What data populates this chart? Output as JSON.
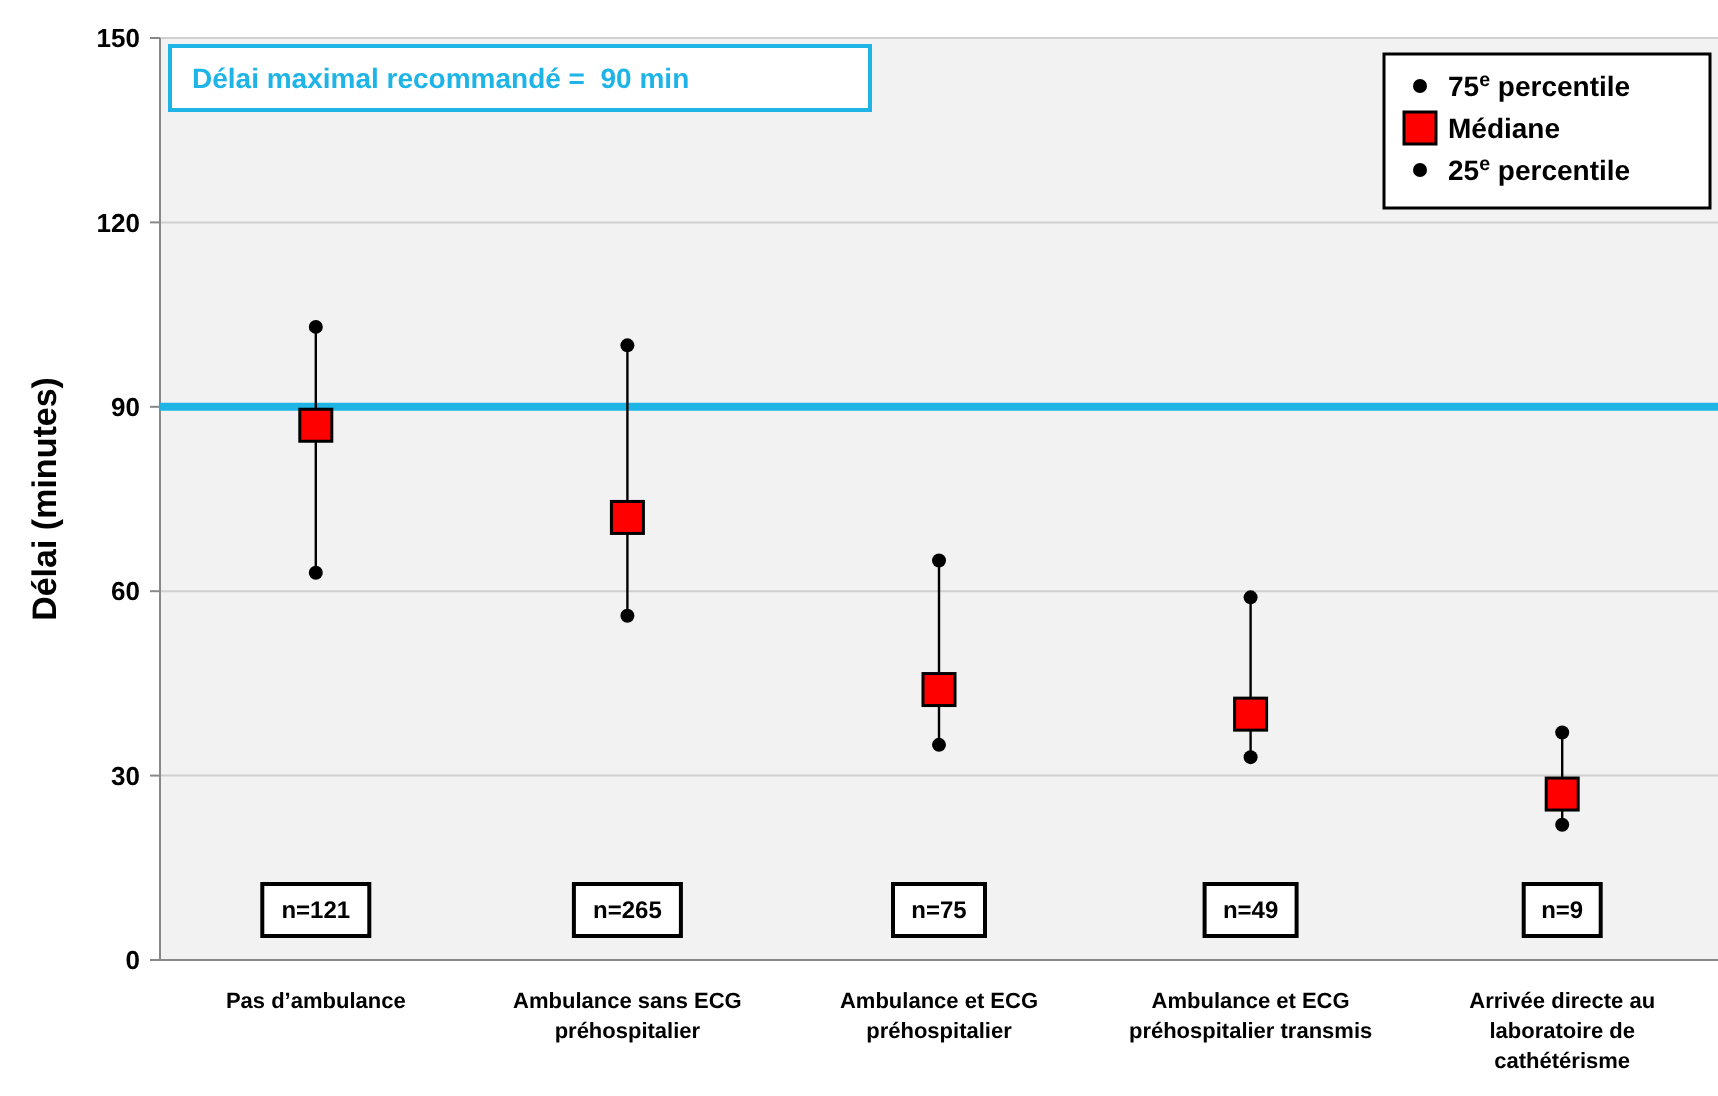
{
  "chart_data": {
    "type": "scatter",
    "ylabel": "Délai (minutes)",
    "categories": [
      "Pas d’ambulance",
      "Ambulance sans ECG préhospitalier",
      "Ambulance et ECG préhospitalier",
      "Ambulance et ECG préhospitalier transmis",
      "Arrivée directe au laboratoire de cathétérisme"
    ],
    "series": [
      {
        "name": "75$^{e}$ percentile",
        "color": "#000000",
        "marker": "circle",
        "values": [
          103,
          100,
          65,
          59,
          37
        ]
      },
      {
        "name": "Médiane",
        "color": "#ff0000",
        "marker": "square",
        "values": [
          87,
          72,
          44,
          40,
          27
        ]
      },
      {
        "name": "25$^{e}$ percentile",
        "color": "#000000",
        "marker": "circle",
        "values": [
          63,
          56,
          35,
          33,
          22
        ]
      }
    ],
    "ylim": [
      0,
      150
    ],
    "yticks": [
      0,
      30,
      60,
      90,
      120,
      150
    ],
    "grid": "y",
    "legend": "top right",
    "ref_lines": [
      {
        "axis": "y",
        "value": 90,
        "label": "Délai maximal recommandé =  90 min",
        "color": "#1fb4e6"
      }
    ],
    "annotations": [
      "n=121",
      "n=265",
      "n=75",
      "n=49",
      "n=9"
    ]
  }
}
